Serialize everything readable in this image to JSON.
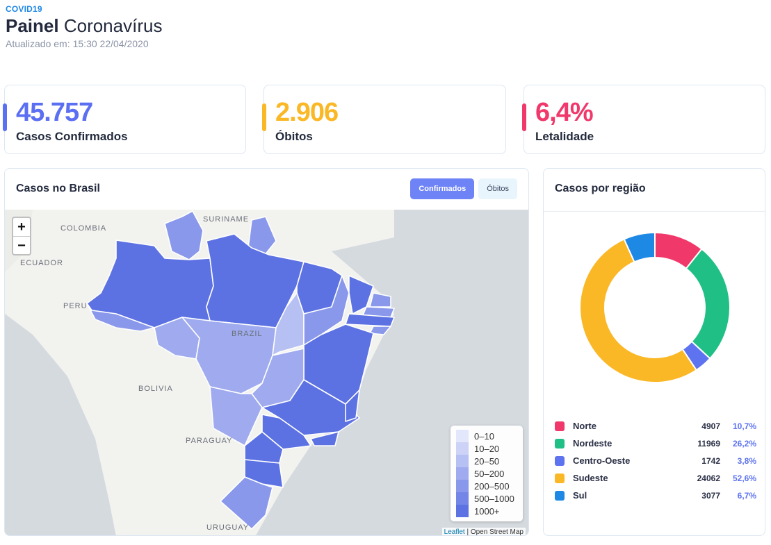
{
  "header": {
    "eyebrow": "COVID19",
    "title_bold": "Painel",
    "title_rest": "Coronavírus",
    "updated_label": "Atualizado em:",
    "updated_value": "15:30 22/04/2020"
  },
  "stats": [
    {
      "value": "45.757",
      "label": "Casos Confirmados",
      "color": "#5b6ff2"
    },
    {
      "value": "2.906",
      "label": "Óbitos",
      "color": "#fbb826"
    },
    {
      "value": "6,4%",
      "label": "Letalidade",
      "color": "#f0386b"
    }
  ],
  "map_panel": {
    "title": "Casos no Brasil",
    "tabs": [
      "Confirmados",
      "Óbitos"
    ],
    "active_tab": "Confirmados",
    "zoom_in": "+",
    "zoom_out": "−",
    "country_labels": [
      "COLOMBIA",
      "SURINAME",
      "ECUADOR",
      "PERU",
      "BRAZIL",
      "BOLIVIA",
      "PARAGUAY",
      "URUGUAY"
    ],
    "legend": [
      {
        "label": "0–10",
        "color": "#e3e7fb"
      },
      {
        "label": "10–20",
        "color": "#ccd3f6"
      },
      {
        "label": "20–50",
        "color": "#b6c0f2"
      },
      {
        "label": "50–200",
        "color": "#9fabee"
      },
      {
        "label": "200–500",
        "color": "#8998ea"
      },
      {
        "label": "500–1000",
        "color": "#7385e6"
      },
      {
        "label": "1000+",
        "color": "#5d72e2"
      }
    ],
    "attribution_link": "Leaflet",
    "attribution_text": "| Open Street Map"
  },
  "region_panel": {
    "title": "Casos por região",
    "regions": [
      {
        "name": "Norte",
        "count": "4907",
        "pct": "10,7%",
        "value": 4907,
        "color": "#f0386b"
      },
      {
        "name": "Nordeste",
        "count": "11969",
        "pct": "26,2%",
        "value": 11969,
        "color": "#20bf85"
      },
      {
        "name": "Centro-Oeste",
        "count": "1742",
        "pct": "3,8%",
        "value": 1742,
        "color": "#5d73f0"
      },
      {
        "name": "Sudeste",
        "count": "24062",
        "pct": "52,6%",
        "value": 24062,
        "color": "#fbb826"
      },
      {
        "name": "Sul",
        "count": "3077",
        "pct": "6,7%",
        "value": 3077,
        "color": "#1e88e5"
      }
    ]
  }
}
